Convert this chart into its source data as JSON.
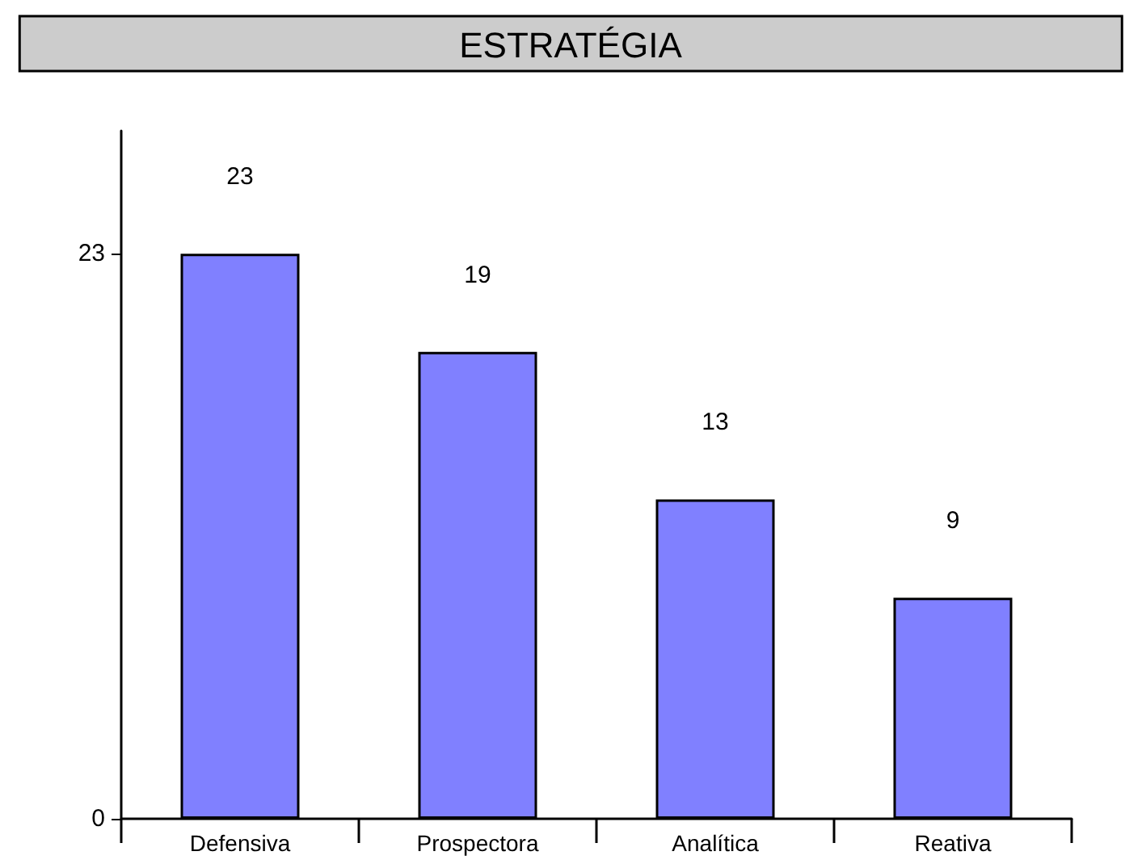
{
  "chart_data": {
    "type": "bar",
    "title": "ESTRATÉGIA",
    "categories": [
      "Defensiva",
      "Prospectora",
      "Analítica",
      "Reativa"
    ],
    "values": [
      23,
      19,
      13,
      9
    ],
    "color": "#8080ff",
    "ylim": [
      0,
      28
    ],
    "yticks": [
      0,
      23
    ],
    "data_labels": true
  }
}
